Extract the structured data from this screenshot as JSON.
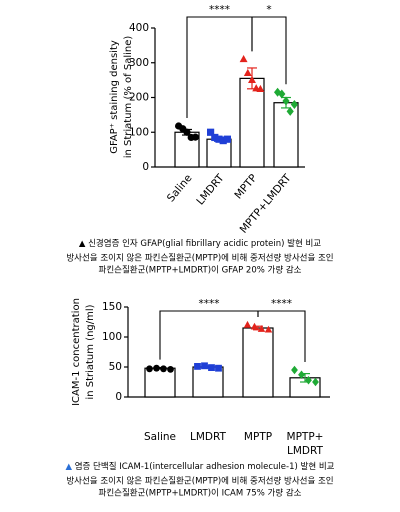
{
  "chart_data": [
    {
      "type": "bar",
      "ylabel": [
        "GFAP⁺ staining density",
        "in Striatum (% of Saline)"
      ],
      "categories": [
        "Saline",
        "LMDRT",
        "MPTP",
        "MPTP+LMDRT"
      ],
      "rotate_labels": true,
      "values": [
        100,
        80,
        255,
        185
      ],
      "errors": [
        8,
        6,
        30,
        15
      ],
      "points": [
        [
          118,
          110,
          100,
          85,
          86
        ],
        [
          100,
          85,
          80,
          76,
          80
        ],
        [
          310,
          270,
          250,
          226,
          224
        ],
        [
          215,
          210,
          190,
          160,
          180
        ]
      ],
      "colors": [
        "#000000",
        "#1f3fd6",
        "#e3231c",
        "#1faa35"
      ],
      "markers": [
        "circle",
        "square",
        "triangle",
        "diamond"
      ],
      "ylim": [
        0,
        400
      ],
      "yticks": [
        0,
        100,
        200,
        300,
        400
      ],
      "brackets": [
        {
          "label": "****",
          "between": [
            "Saline",
            "MPTP"
          ]
        },
        {
          "label": "*",
          "between": [
            "MPTP",
            "MPTP+LMDRT"
          ]
        }
      ],
      "caption_marker": "▲",
      "caption_marker_color": "#000000",
      "caption_title": "신경염증 인자 GFAP(glial fibrillary acidic protein) 발현 비교",
      "caption_lines": [
        "방사선을 조이지 않은 파킨슨질환군(MPTP)에 비해 중저선량 방사선을 조인",
        "파킨슨질환군(MPTP+LMDRT)이 GFAP 20% 가량 감소"
      ]
    },
    {
      "type": "bar",
      "ylabel": [
        "ICAM-1 concentration",
        "in Striatum (ng/ml)"
      ],
      "categories": [
        "Saline",
        "LMDRT",
        "MPTP",
        "MPTP+\nLMDRT"
      ],
      "rotate_labels": false,
      "values": [
        48,
        50,
        115,
        32
      ],
      "errors": [
        1,
        2,
        3,
        7
      ],
      "points": [
        [
          47,
          48,
          47,
          46
        ],
        [
          51,
          52,
          49,
          48
        ],
        [
          120,
          117,
          113,
          112
        ],
        [
          45,
          37,
          28,
          25
        ]
      ],
      "colors": [
        "#000000",
        "#1f3fd6",
        "#e3231c",
        "#1faa35"
      ],
      "markers": [
        "circle",
        "square",
        "triangle",
        "diamond"
      ],
      "ylim": [
        0,
        150
      ],
      "yticks": [
        0,
        50,
        100,
        150
      ],
      "brackets": [
        {
          "label": "****",
          "between": [
            "Saline",
            "MPTP"
          ]
        },
        {
          "label": "****",
          "between": [
            "MPTP",
            "MPTP+\nLMDRT"
          ]
        }
      ],
      "caption_marker": "▲",
      "caption_marker_color": "#2a6fd6",
      "caption_title": "염증 단백질 ICAM-1(intercellular adhesion molecule-1) 발현 비교",
      "caption_lines": [
        "방사선을 조이지 않은 파킨슨질환군(MPTP)에 비해 중저선량 방사선을 조인",
        "파킨슨질환군(MPTP+LMDRT)이 ICAM 75% 가량 감소"
      ]
    }
  ]
}
